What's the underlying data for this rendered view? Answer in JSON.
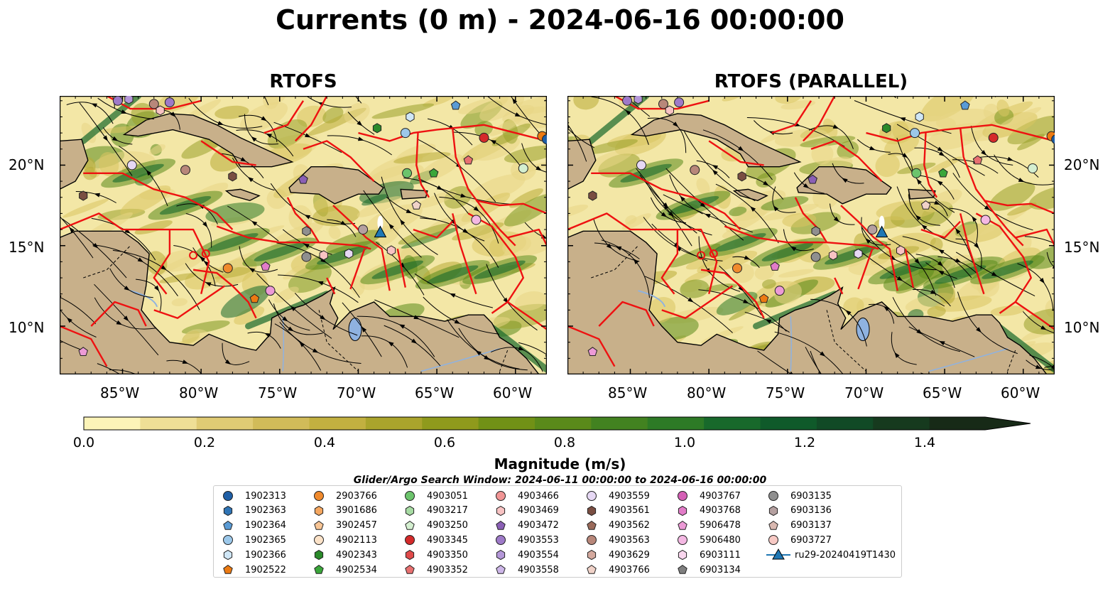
{
  "title": "Currents (0 m) - 2024-06-16 00:00:00",
  "panels": [
    {
      "title": "RTOFS"
    },
    {
      "title": "RTOFS (PARALLEL)"
    }
  ],
  "lat_labels": [
    "20°N",
    "15°N",
    "10°N"
  ],
  "lon_labels": [
    "85°W",
    "80°W",
    "75°W",
    "70°W",
    "65°W",
    "60°W"
  ],
  "colorbar": {
    "label": "Magnitude (m/s)",
    "ticks": [
      "0.0",
      "0.2",
      "0.4",
      "0.6",
      "0.8",
      "1.0",
      "1.2",
      "1.4"
    ],
    "colors": [
      "#fcf4b8",
      "#efdf96",
      "#e0cb74",
      "#d1bb59",
      "#c2b040",
      "#aaa42c",
      "#8f9a1c",
      "#719116",
      "#5a8a1a",
      "#428220",
      "#2d7a26",
      "#18692b",
      "#0f5a2a",
      "#114a26",
      "#163a1e",
      "#172a17"
    ]
  },
  "search_window": "Glider/Argo Search Window: 2024-06-11 00:00:00 to 2024-06-16 00:00:00",
  "legend": [
    {
      "label": "1902313",
      "marker": "circle",
      "color": "#1f5fa6"
    },
    {
      "label": "1902363",
      "marker": "hexagon",
      "color": "#2f74b5"
    },
    {
      "label": "1902364",
      "marker": "pentagon",
      "color": "#5a9bd5"
    },
    {
      "label": "1902365",
      "marker": "circle",
      "color": "#9cc8ea"
    },
    {
      "label": "1902366",
      "marker": "hexagon",
      "color": "#cfe6f6"
    },
    {
      "label": "1902522",
      "marker": "pentagon",
      "color": "#ec7a12"
    },
    {
      "label": "2903766",
      "marker": "circle",
      "color": "#f08a2d"
    },
    {
      "label": "3901686",
      "marker": "hexagon",
      "color": "#f5a760"
    },
    {
      "label": "3902457",
      "marker": "pentagon",
      "color": "#f8c595"
    },
    {
      "label": "4902113",
      "marker": "circle",
      "color": "#fbe2c8"
    },
    {
      "label": "4902343",
      "marker": "hexagon",
      "color": "#2a8a2a"
    },
    {
      "label": "4902534",
      "marker": "pentagon",
      "color": "#3aa63a"
    },
    {
      "label": "4903051",
      "marker": "circle",
      "color": "#6cc46c"
    },
    {
      "label": "4903217",
      "marker": "hexagon",
      "color": "#a7dba3"
    },
    {
      "label": "4903250",
      "marker": "pentagon",
      "color": "#d4efd0"
    },
    {
      "label": "4903345",
      "marker": "circle",
      "color": "#d42a2a"
    },
    {
      "label": "4903350",
      "marker": "hexagon",
      "color": "#e04a4a"
    },
    {
      "label": "4903352",
      "marker": "pentagon",
      "color": "#e87070"
    },
    {
      "label": "4903466",
      "marker": "circle",
      "color": "#f19595"
    },
    {
      "label": "4903469",
      "marker": "hexagon",
      "color": "#f8c3c3"
    },
    {
      "label": "4903472",
      "marker": "pentagon",
      "color": "#8a5fb5"
    },
    {
      "label": "4903553",
      "marker": "circle",
      "color": "#9e7ac8"
    },
    {
      "label": "4903554",
      "marker": "hexagon",
      "color": "#b497d8"
    },
    {
      "label": "4903558",
      "marker": "pentagon",
      "color": "#cdb6e8"
    },
    {
      "label": "4903559",
      "marker": "circle",
      "color": "#e6d8f4"
    },
    {
      "label": "4903561",
      "marker": "hexagon",
      "color": "#7a4e42"
    },
    {
      "label": "4903562",
      "marker": "pentagon",
      "color": "#9a6a5a"
    },
    {
      "label": "4903563",
      "marker": "circle",
      "color": "#b8877a"
    },
    {
      "label": "4903629",
      "marker": "hexagon",
      "color": "#d4a99e"
    },
    {
      "label": "4903766",
      "marker": "pentagon",
      "color": "#f0d2c8"
    },
    {
      "label": "4903767",
      "marker": "circle",
      "color": "#d45fb5"
    },
    {
      "label": "4903768",
      "marker": "hexagon",
      "color": "#e27cc8"
    },
    {
      "label": "5906478",
      "marker": "pentagon",
      "color": "#ec9ad6"
    },
    {
      "label": "5906480",
      "marker": "circle",
      "color": "#f4b8e3"
    },
    {
      "label": "6903111",
      "marker": "hexagon",
      "color": "#f9d6ee"
    },
    {
      "label": "6903134",
      "marker": "pentagon",
      "color": "#7f7f7f"
    },
    {
      "label": "6903135",
      "marker": "circle",
      "color": "#8f8f8f"
    },
    {
      "label": "6903136",
      "marker": "hexagon",
      "color": "#b5a0a0"
    },
    {
      "label": "6903137",
      "marker": "pentagon",
      "color": "#d9b8b0"
    },
    {
      "label": "6903727",
      "marker": "circle",
      "color": "#f7c9c4"
    },
    {
      "label": "ru29-20240419T1430",
      "marker": "triangle-line",
      "color": "#1f77b4"
    }
  ],
  "colors": {
    "land": "#c8b08a",
    "boundary": "#ee1111",
    "lake": "#8fb2e0"
  }
}
